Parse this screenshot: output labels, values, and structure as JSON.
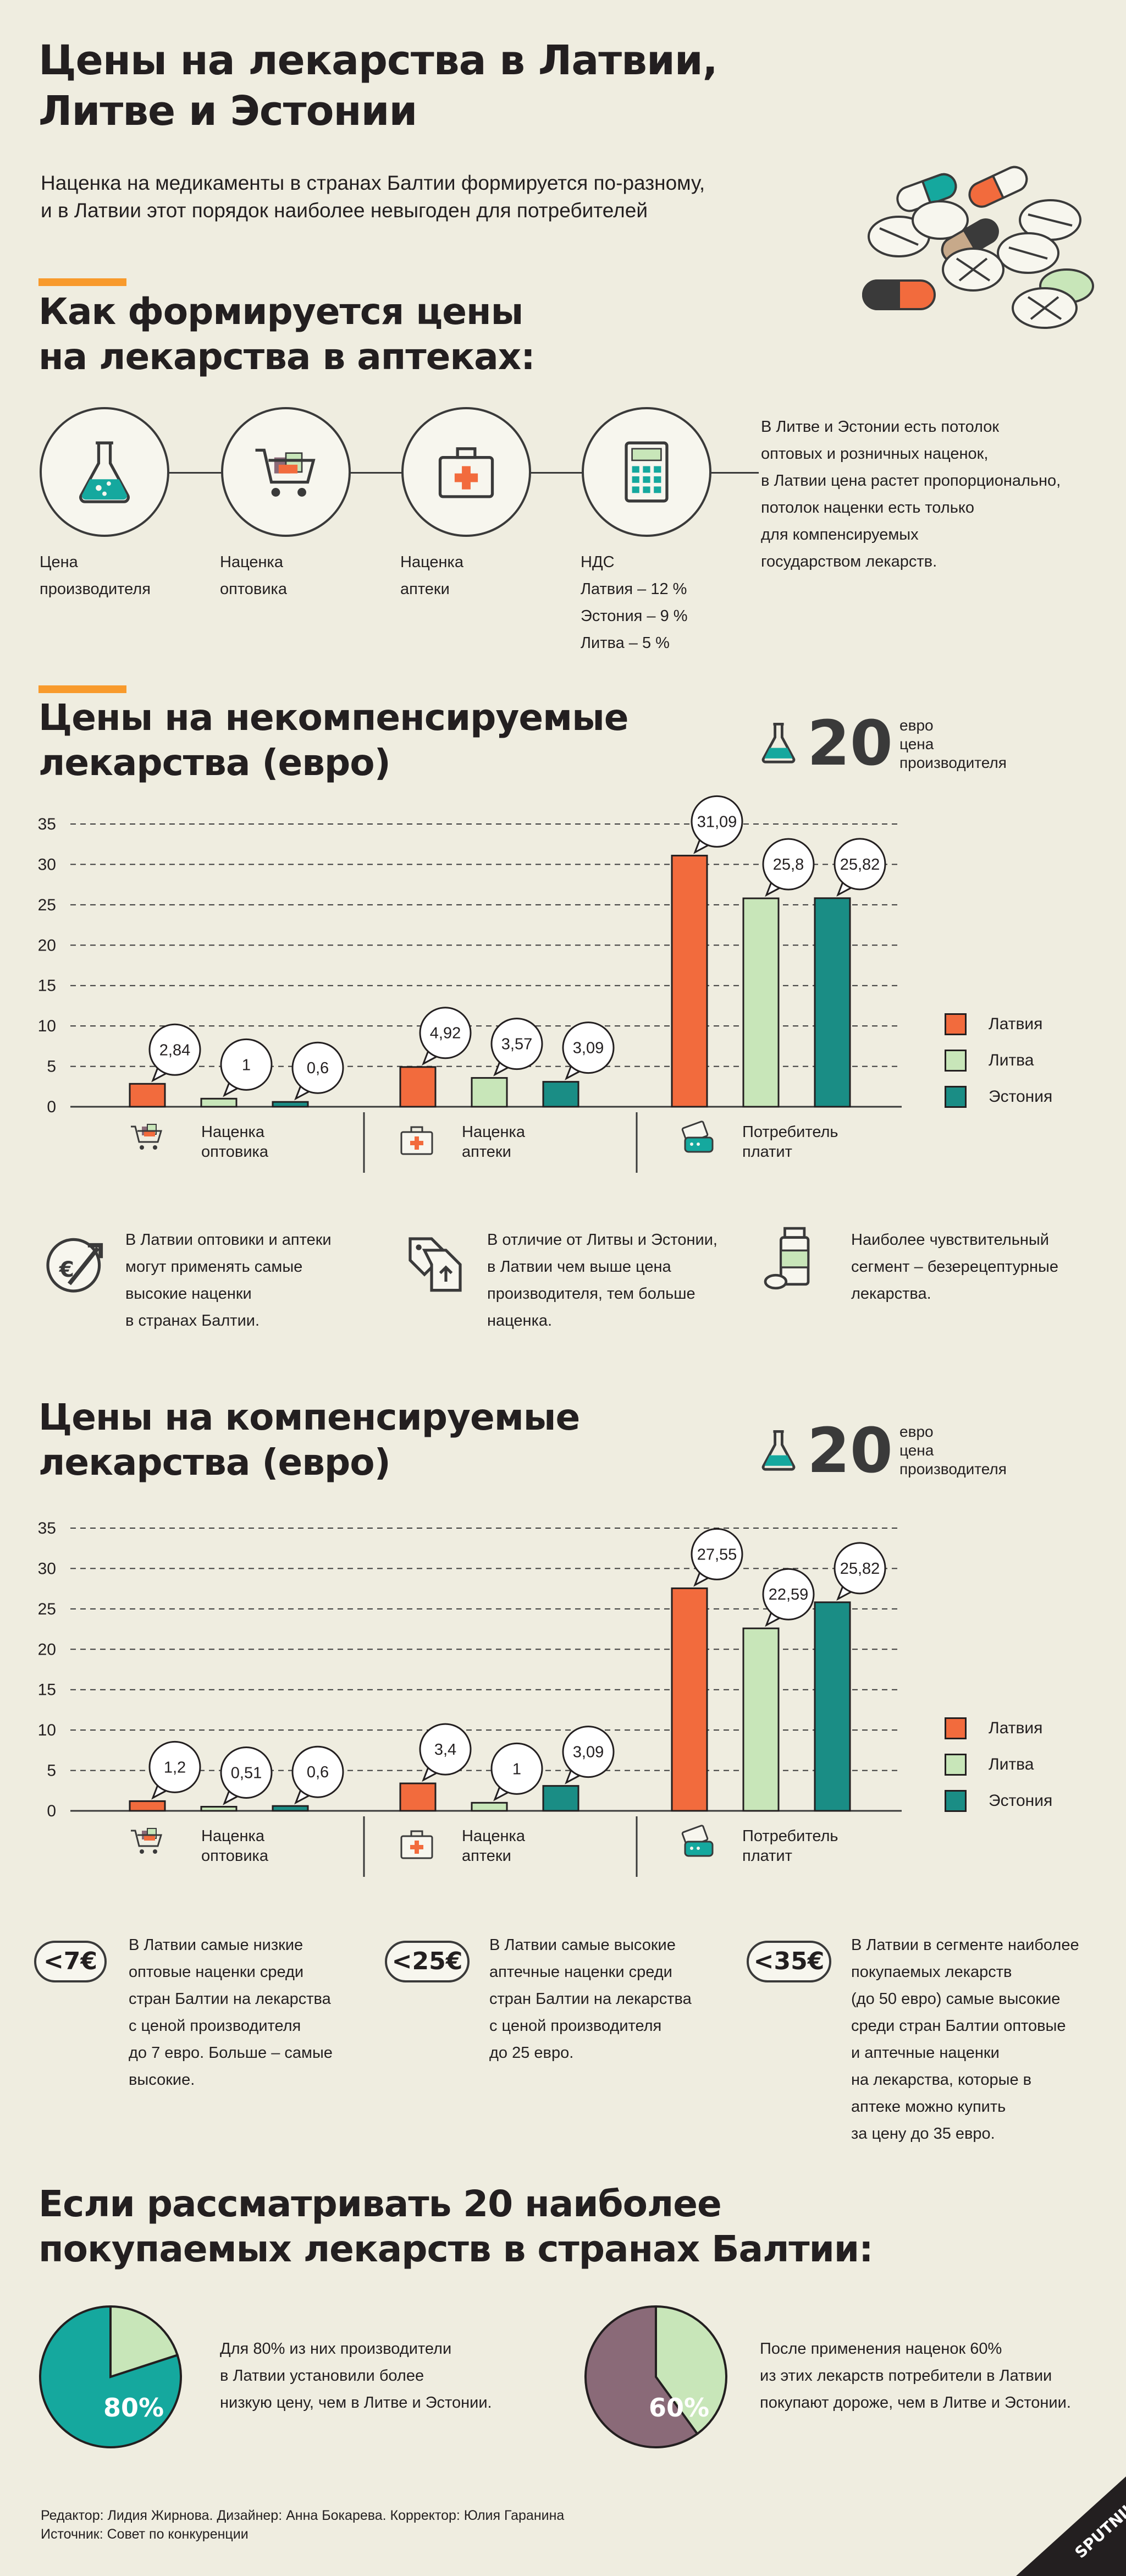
{
  "header": {
    "title_line1": "Цены на лекарства в Латвии,",
    "title_line2": "Литве и Эстонии",
    "lead_line1": "Наценка на медикаменты в странах Балтии формируется по-разному,",
    "lead_line2": "и в Латвии этот порядок наиболее невыгоден для потребителей"
  },
  "colors": {
    "latvia": "#f26b3d",
    "lithuania": "#c8e6b9",
    "estonia": "#1a8d85",
    "accent": "#f89a2c",
    "pie_green": "#15a89e",
    "pie_light": "#c8e6b9",
    "pie_mauve": "#8a6a78"
  },
  "process": {
    "title_line1": "Как формируется цены",
    "title_line2": "на лекарства в аптеках:",
    "steps": [
      {
        "icon": "flask-icon",
        "label_line1": "Цена",
        "label_line2": "производителя"
      },
      {
        "icon": "cart-icon",
        "label_line1": "Наценка",
        "label_line2": "оптовика"
      },
      {
        "icon": "first-aid-kit-icon",
        "label_line1": "Наценка",
        "label_line2": "аптеки"
      },
      {
        "icon": "calculator-icon",
        "label_line1": "НДС",
        "label_line2": "Латвия – 12 %",
        "label_line3": "Эстония – 9 %",
        "label_line4": "Литва – 5 %"
      }
    ],
    "note_lines": [
      "В Литве и Эстонии есть потолок",
      "оптовых и розничных наценок,",
      "в Латвии цена растет пропорционально,",
      "потолок наценки есть только",
      "для компенсируемых",
      "государством лекарств."
    ]
  },
  "section1": {
    "title_line1": "Цены на некомпенсируемые",
    "title_line2": "лекарства (евро)",
    "price_value": "20",
    "price_note_lines": [
      "евро",
      "цена",
      "производителя"
    ]
  },
  "section2": {
    "title_line1": "Цены на компенсируемые",
    "title_line2": "лекарства (евро)",
    "price_value": "20",
    "price_note_lines": [
      "евро",
      "цена",
      "производителя"
    ]
  },
  "chart_data": [
    {
      "type": "bar",
      "title": "Цены на некомпенсируемые лекарства (евро)",
      "categories": [
        "Наценка оптовика",
        "Наценка аптеки",
        "Потребитель платит"
      ],
      "series": [
        {
          "name": "Латвия",
          "values": [
            2.84,
            4.92,
            31.09
          ],
          "labels": [
            "2,84",
            "4,92",
            "31,09"
          ]
        },
        {
          "name": "Литва",
          "values": [
            1,
            3.57,
            25.8
          ],
          "labels": [
            "1",
            "3,57",
            "25,8"
          ]
        },
        {
          "name": "Эстония",
          "values": [
            0.6,
            3.09,
            25.82
          ],
          "labels": [
            "0,6",
            "3,09",
            "25,82"
          ]
        }
      ],
      "yticks": [
        0,
        5,
        10,
        15,
        20,
        25,
        30,
        35
      ],
      "ylim": [
        0,
        35
      ],
      "grid": true,
      "legend": "right"
    },
    {
      "type": "bar",
      "title": "Цены на компенсируемые лекарства (евро)",
      "categories": [
        "Наценка оптовика",
        "Наценка аптеки",
        "Потребитель платит"
      ],
      "series": [
        {
          "name": "Латвия",
          "values": [
            1.2,
            3.4,
            27.55
          ],
          "labels": [
            "1,2",
            "3,4",
            "27,55"
          ]
        },
        {
          "name": "Литва",
          "values": [
            0.51,
            1,
            22.59
          ],
          "labels": [
            "0,51",
            "1",
            "22,59"
          ]
        },
        {
          "name": "Эстония",
          "values": [
            0.6,
            3.09,
            25.82
          ],
          "labels": [
            "0,6",
            "3,09",
            "25,82"
          ]
        }
      ],
      "yticks": [
        0,
        5,
        10,
        15,
        20,
        25,
        30,
        35
      ],
      "ylim": [
        0,
        35
      ],
      "grid": true,
      "legend": "right"
    },
    {
      "type": "pie",
      "values": [
        80,
        20
      ],
      "label": "80%"
    },
    {
      "type": "pie",
      "values": [
        60,
        40
      ],
      "label": "60%"
    }
  ],
  "groups": [
    {
      "icon": "cart-icon",
      "line1": "Наценка",
      "line2": "оптовика"
    },
    {
      "icon": "first-aid-kit-icon",
      "line1": "Наценка",
      "line2": "аптеки"
    },
    {
      "icon": "card-payment-icon",
      "line1": "Потребитель",
      "line2": "платит"
    }
  ],
  "legend": [
    "Латвия",
    "Литва",
    "Эстония"
  ],
  "notes1": [
    {
      "icon": "euro-arrow-icon",
      "lines": [
        "В Латвии оптовики и аптеки",
        "могут применять самые",
        "высокие наценки",
        "в странах Балтии."
      ]
    },
    {
      "icon": "price-tags-icon",
      "lines": [
        "В отличие от Литвы и Эстонии,",
        "в Латвии чем выше цена",
        "производителя, тем больше",
        "наценка."
      ]
    },
    {
      "icon": "pill-bottle-icon",
      "lines": [
        "Наиболее чувствительный",
        "сегмент – безерецептурные",
        "лекарства."
      ]
    }
  ],
  "notes2": [
    {
      "badge": "<7€",
      "lines": [
        "В Латвии самые низкие",
        "оптовые наценки среди",
        "стран Балтии на лекарства",
        "с ценой производителя",
        "до 7 евро. Больше – самые",
        "высокие."
      ]
    },
    {
      "badge": "<25€",
      "lines": [
        "В Латвии самые высокие",
        "аптечные наценки среди",
        "стран Балтии на лекарства",
        "с ценой производителя",
        "до 25 евро."
      ]
    },
    {
      "badge": "<35€",
      "lines": [
        "В Латвии в сегменте наиболее",
        "покупаемых лекарств",
        "(до 50 евро) самые высокие",
        "среди стран Балтии оптовые",
        "и аптечные наценки",
        "на лекарства, которые в",
        "аптеке можно купить",
        "за цену до 35 евро."
      ]
    }
  ],
  "top20": {
    "title_line1": "Если рассматривать 20 наиболее",
    "title_line2": "покупаемых лекарств в странах Балтии:",
    "pie1_text": [
      "Для 80% из них производители",
      "в Латвии установили более",
      "низкую цену, чем в Литве и Эстонии."
    ],
    "pie2_text": [
      "После применения наценок 60%",
      "из этих лекарств потребители в Латвии",
      "покупают дороже, чем в Литве и Эстонии."
    ]
  },
  "footer": {
    "credits": "Редактор: Лидия Жирнова. Дизайнер: Анна Бокарева. Корректор: Юлия Гаранина",
    "source": "Источник: Совет по конкуренции",
    "logo_text": "SPUTNIK"
  }
}
